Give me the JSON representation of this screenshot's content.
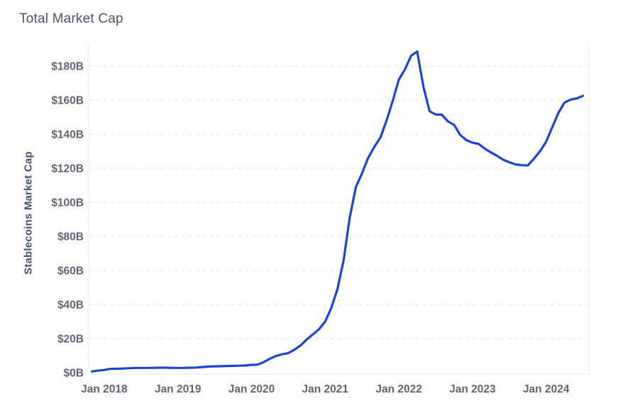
{
  "header": {
    "title": "Total Market Cap"
  },
  "colors": {
    "line": "#1d44d1",
    "title_text": "#4a5568",
    "tick_text": "#5f6672",
    "axis_title_text": "#46506a",
    "grid": "#dfe3e9",
    "border": "#e7eaee",
    "background": "#ffffff"
  },
  "chart_data": {
    "type": "line",
    "title": "Total Market Cap",
    "xlabel": "",
    "ylabel": "Stablecoins Market Cap",
    "legend": "none",
    "grid": "horizontal-dashed",
    "ylim": [
      0,
      193.75
    ],
    "x_start": "2017-11",
    "x_end": "2024-07",
    "y_ticks": [
      {
        "value": 0,
        "label": "$0B"
      },
      {
        "value": 20,
        "label": "$20B"
      },
      {
        "value": 40,
        "label": "$40B"
      },
      {
        "value": 60,
        "label": "$60B"
      },
      {
        "value": 80,
        "label": "$80B"
      },
      {
        "value": 100,
        "label": "$100B"
      },
      {
        "value": 120,
        "label": "$120B"
      },
      {
        "value": 140,
        "label": "$140B"
      },
      {
        "value": 160,
        "label": "$160B"
      },
      {
        "value": 180,
        "label": "$180B"
      }
    ],
    "x_ticks": [
      {
        "year": 2018,
        "label": "Jan 2018"
      },
      {
        "year": 2019,
        "label": "Jan 2019"
      },
      {
        "year": 2020,
        "label": "Jan 2020"
      },
      {
        "year": 2021,
        "label": "Jan 2021"
      },
      {
        "year": 2022,
        "label": "Jan 2022"
      },
      {
        "year": 2023,
        "label": "Jan 2023"
      },
      {
        "year": 2024,
        "label": "Jan 2024"
      }
    ],
    "series": [
      {
        "name": "Stablecoins Market Cap",
        "unit": "$B",
        "color": "#1d44d1",
        "points": [
          [
            "2017-11",
            0.7
          ],
          [
            "2017-12",
            1.2
          ],
          [
            "2018-01",
            1.6
          ],
          [
            "2018-02",
            2.2
          ],
          [
            "2018-03",
            2.3
          ],
          [
            "2018-04",
            2.4
          ],
          [
            "2018-05",
            2.6
          ],
          [
            "2018-06",
            2.8
          ],
          [
            "2018-07",
            2.8
          ],
          [
            "2018-08",
            2.8
          ],
          [
            "2018-09",
            2.85
          ],
          [
            "2018-10",
            2.9
          ],
          [
            "2018-11",
            2.9
          ],
          [
            "2018-12",
            2.8
          ],
          [
            "2019-01",
            2.8
          ],
          [
            "2019-02",
            2.8
          ],
          [
            "2019-03",
            2.9
          ],
          [
            "2019-04",
            3.0
          ],
          [
            "2019-05",
            3.3
          ],
          [
            "2019-06",
            3.6
          ],
          [
            "2019-07",
            3.7
          ],
          [
            "2019-08",
            3.8
          ],
          [
            "2019-09",
            3.9
          ],
          [
            "2019-10",
            4.0
          ],
          [
            "2019-11",
            4.1
          ],
          [
            "2019-12",
            4.2
          ],
          [
            "2020-01",
            4.6
          ],
          [
            "2020-02",
            4.7
          ],
          [
            "2020-03",
            6.2
          ],
          [
            "2020-04",
            8.2
          ],
          [
            "2020-05",
            9.8
          ],
          [
            "2020-06",
            10.8
          ],
          [
            "2020-07",
            11.5
          ],
          [
            "2020-08",
            13.5
          ],
          [
            "2020-09",
            16.0
          ],
          [
            "2020-10",
            19.5
          ],
          [
            "2020-11",
            22.5
          ],
          [
            "2020-12",
            25.5
          ],
          [
            "2021-01",
            30
          ],
          [
            "2021-02",
            38
          ],
          [
            "2021-03",
            49
          ],
          [
            "2021-04",
            66
          ],
          [
            "2021-05",
            91
          ],
          [
            "2021-06",
            109
          ],
          [
            "2021-07",
            117
          ],
          [
            "2021-08",
            126
          ],
          [
            "2021-09",
            132.5
          ],
          [
            "2021-10",
            138
          ],
          [
            "2021-11",
            148
          ],
          [
            "2021-12",
            159.5
          ],
          [
            "2022-01",
            172
          ],
          [
            "2022-02",
            178
          ],
          [
            "2022-03",
            186
          ],
          [
            "2022-04",
            188.5
          ],
          [
            "2022-05",
            168
          ],
          [
            "2022-06",
            153.5
          ],
          [
            "2022-07",
            151.5
          ],
          [
            "2022-08",
            151.5
          ],
          [
            "2022-09",
            147.5
          ],
          [
            "2022-10",
            145.5
          ],
          [
            "2022-11",
            139.5
          ],
          [
            "2022-12",
            136.5
          ],
          [
            "2023-01",
            135
          ],
          [
            "2023-02",
            134.3
          ],
          [
            "2023-03",
            131.5
          ],
          [
            "2023-04",
            129.3
          ],
          [
            "2023-05",
            127.3
          ],
          [
            "2023-06",
            125
          ],
          [
            "2023-07",
            123.5
          ],
          [
            "2023-08",
            122.3
          ],
          [
            "2023-09",
            121.8
          ],
          [
            "2023-10",
            121.6
          ],
          [
            "2023-11",
            125.5
          ],
          [
            "2023-12",
            130
          ],
          [
            "2024-01",
            135.5
          ],
          [
            "2024-02",
            144
          ],
          [
            "2024-03",
            152.5
          ],
          [
            "2024-04",
            158.5
          ],
          [
            "2024-05",
            160.3
          ],
          [
            "2024-06",
            161
          ],
          [
            "2024-07",
            162.5
          ]
        ]
      }
    ]
  }
}
